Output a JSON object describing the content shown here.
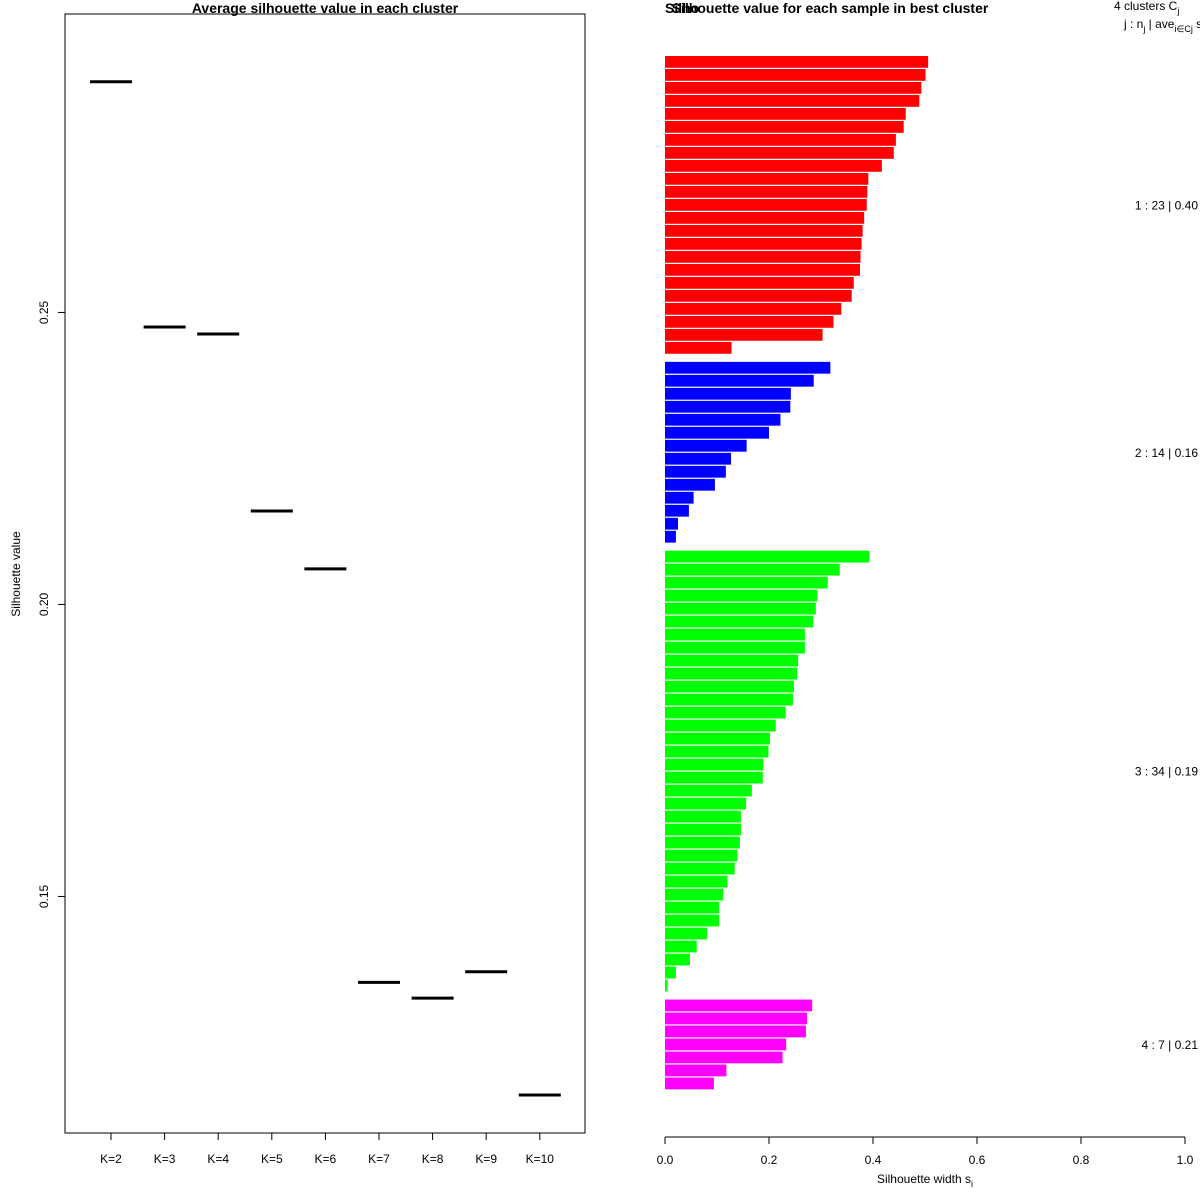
{
  "chart_data": [
    {
      "type": "scatter",
      "title": "Average silhouette value in each cluster",
      "ylabel": "Silhouette value",
      "xlabel": "",
      "categories": [
        "K=2",
        "K=3",
        "K=4",
        "K=5",
        "K=6",
        "K=7",
        "K=8",
        "K=9",
        "K=10"
      ],
      "values": [
        0.2895,
        0.2475,
        0.2463,
        0.216,
        0.2061,
        0.1353,
        0.1326,
        0.1371,
        0.116
      ],
      "yticks": [
        "0.15",
        "0.20",
        "0.25"
      ],
      "ylim": [
        0.1095,
        0.3011
      ]
    },
    {
      "type": "bar",
      "orientation": "horizontal",
      "title": "Silhouette value for each sample in best cluster",
      "title_overlap": "Silho",
      "xlabel": "Silhouette width s",
      "xlabel_sub": "i",
      "xlim": [
        0,
        1
      ],
      "xticks": [
        "0.0",
        "0.2",
        "0.4",
        "0.6",
        "0.8",
        "1.0"
      ],
      "legend_header": {
        "line1_main": "4  clusters  C",
        "line1_sub": "j",
        "line2_main": "j :  n",
        "line2_sub1": "j",
        "line2_mid": " | ave",
        "line2_sub2": "i∈Cj",
        "line2_tail": "  s"
      },
      "clusters": [
        {
          "id": 1,
          "n": 23,
          "ave": 0.4,
          "label": "1 :  23  |  0.40",
          "color": "#ff0000",
          "values": [
            0.506,
            0.501,
            0.493,
            0.489,
            0.463,
            0.459,
            0.444,
            0.44,
            0.417,
            0.391,
            0.389,
            0.388,
            0.383,
            0.38,
            0.378,
            0.376,
            0.375,
            0.363,
            0.359,
            0.339,
            0.324,
            0.303,
            0.128
          ]
        },
        {
          "id": 2,
          "n": 14,
          "ave": 0.16,
          "label": "2 :  14  |  0.16",
          "color": "#0000ff",
          "values": [
            0.318,
            0.286,
            0.242,
            0.241,
            0.222,
            0.2,
            0.157,
            0.127,
            0.117,
            0.096,
            0.055,
            0.046,
            0.025,
            0.021
          ]
        },
        {
          "id": 3,
          "n": 34,
          "ave": 0.19,
          "label": "3 :  34  |  0.19",
          "color": "#00ff00",
          "values": [
            0.393,
            0.336,
            0.313,
            0.293,
            0.29,
            0.285,
            0.269,
            0.269,
            0.256,
            0.254,
            0.248,
            0.246,
            0.232,
            0.213,
            0.202,
            0.199,
            0.189,
            0.188,
            0.167,
            0.156,
            0.146,
            0.146,
            0.144,
            0.139,
            0.134,
            0.12,
            0.112,
            0.104,
            0.104,
            0.081,
            0.061,
            0.048,
            0.021,
            0.005
          ]
        },
        {
          "id": 4,
          "n": 7,
          "ave": 0.21,
          "label": "4 :  7  |  0.21",
          "color": "#ff00ff",
          "values": [
            0.283,
            0.273,
            0.271,
            0.233,
            0.226,
            0.118,
            0.094
          ]
        }
      ]
    }
  ]
}
